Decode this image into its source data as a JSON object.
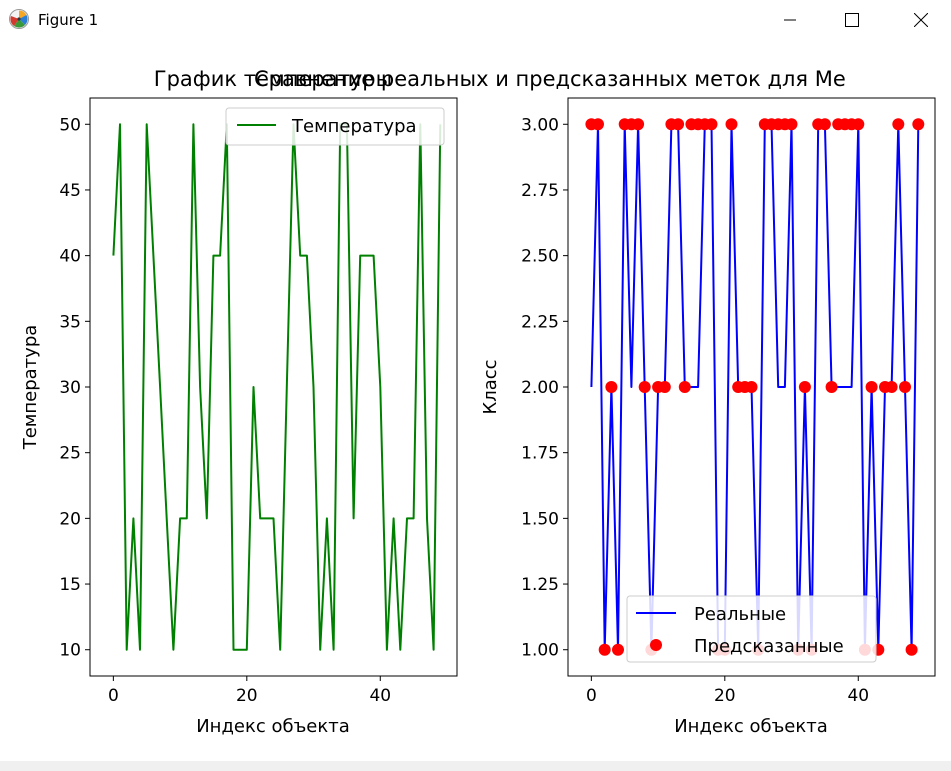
{
  "window": {
    "title": "Figure 1",
    "controls": [
      "minimize",
      "maximize",
      "close"
    ]
  },
  "colors": {
    "temperature_line": "#008000",
    "real_line": "#0000ff",
    "predicted_points": "#ff0000"
  },
  "chart_data": [
    {
      "type": "line",
      "title": "График температуры",
      "xlabel": "Индекс объекта",
      "ylabel": "Температура",
      "xlim": [
        -3.5,
        51.5
      ],
      "ylim": [
        8,
        52
      ],
      "xticks": [
        0,
        20,
        40
      ],
      "yticks": [
        10,
        15,
        20,
        25,
        30,
        35,
        40,
        45,
        50
      ],
      "legend_position": "upper right",
      "series": [
        {
          "name": "Температура",
          "x": [
            0,
            1,
            2,
            3,
            4,
            5,
            6,
            7,
            8,
            9,
            10,
            11,
            12,
            13,
            14,
            15,
            16,
            17,
            18,
            19,
            20,
            21,
            22,
            23,
            24,
            25,
            26,
            27,
            28,
            29,
            30,
            31,
            32,
            33,
            34,
            35,
            36,
            37,
            38,
            39,
            40,
            41,
            42,
            43,
            44,
            45,
            46,
            47,
            48,
            49
          ],
          "values": [
            40,
            50,
            10,
            20,
            10,
            50,
            40,
            30,
            20,
            10,
            20,
            20,
            50,
            30,
            20,
            40,
            40,
            50,
            10,
            10,
            10,
            30,
            20,
            20,
            20,
            10,
            30,
            50,
            40,
            40,
            30,
            10,
            20,
            10,
            50,
            50,
            20,
            40,
            40,
            40,
            30,
            10,
            20,
            10,
            20,
            20,
            50,
            20,
            10,
            50
          ]
        }
      ]
    },
    {
      "type": "line",
      "title": "Сравнение реальных и предсказанных меток для Ме",
      "xlabel": "Индекс объекта",
      "ylabel": "Класс",
      "xlim": [
        -3.5,
        51.5
      ],
      "ylim": [
        0.9,
        3.1
      ],
      "xticks": [
        0,
        20,
        40
      ],
      "yticks": [
        "1.00",
        "1.25",
        "1.50",
        "1.75",
        "2.00",
        "2.25",
        "2.50",
        "2.75",
        "3.00"
      ],
      "legend_position": "lower center",
      "series": [
        {
          "name": "Реальные",
          "kind": "line",
          "x": [
            0,
            1,
            2,
            3,
            4,
            5,
            6,
            7,
            8,
            9,
            10,
            11,
            12,
            13,
            14,
            15,
            16,
            17,
            18,
            19,
            20,
            21,
            22,
            23,
            24,
            25,
            26,
            27,
            28,
            29,
            30,
            31,
            32,
            33,
            34,
            35,
            36,
            37,
            38,
            39,
            40,
            41,
            42,
            43,
            44,
            45,
            46,
            47,
            48,
            49
          ],
          "values": [
            2,
            3,
            1,
            2,
            1,
            3,
            2,
            3,
            2,
            1,
            2,
            2,
            3,
            3,
            2,
            2,
            2,
            3,
            3,
            1,
            1,
            3,
            2,
            2,
            2,
            1,
            3,
            3,
            2,
            2,
            3,
            1,
            2,
            1,
            3,
            3,
            2,
            2,
            2,
            2,
            3,
            1,
            2,
            1,
            2,
            2,
            3,
            2,
            1,
            3
          ]
        },
        {
          "name": "Предсказанные",
          "kind": "scatter",
          "x": [
            0,
            1,
            2,
            3,
            4,
            5,
            6,
            7,
            8,
            9,
            10,
            11,
            12,
            13,
            14,
            15,
            16,
            17,
            18,
            19,
            20,
            21,
            22,
            23,
            24,
            25,
            26,
            27,
            28,
            29,
            30,
            31,
            32,
            33,
            34,
            35,
            36,
            37,
            38,
            39,
            40,
            41,
            42,
            43,
            44,
            45,
            46,
            47,
            48,
            49
          ],
          "values": [
            3,
            3,
            1,
            2,
            1,
            3,
            3,
            3,
            2,
            1,
            2,
            2,
            3,
            3,
            2,
            3,
            3,
            3,
            3,
            1,
            1,
            3,
            2,
            2,
            2,
            1,
            3,
            3,
            3,
            3,
            3,
            1,
            2,
            1,
            3,
            3,
            2,
            3,
            3,
            3,
            3,
            1,
            2,
            1,
            2,
            2,
            3,
            2,
            1,
            3
          ]
        }
      ]
    }
  ]
}
